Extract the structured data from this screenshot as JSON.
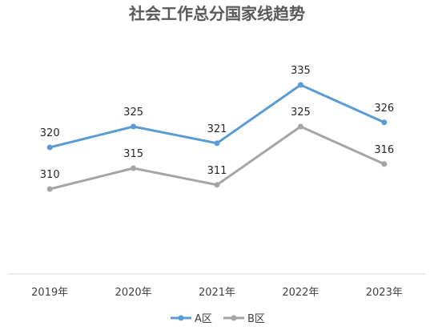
{
  "chart_data": {
    "type": "line",
    "title": "社会工作总分国家线趋势",
    "categories": [
      "2019年",
      "2020年",
      "2021年",
      "2022年",
      "2023年"
    ],
    "series": [
      {
        "name": "A区",
        "values": [
          320,
          325,
          321,
          335,
          326
        ],
        "color": "#5B9BD5"
      },
      {
        "name": "B区",
        "values": [
          310,
          315,
          311,
          325,
          316
        ],
        "color": "#A5A5A5"
      }
    ],
    "xlabel": "",
    "ylabel": "",
    "ylim": [
      290,
      340
    ],
    "grid": false,
    "legend": "bottom"
  },
  "colors": {
    "axis": "#d9d9d9"
  }
}
